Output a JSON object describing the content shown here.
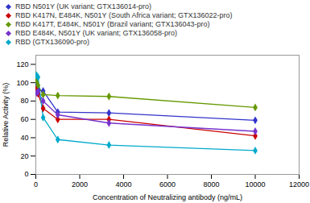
{
  "chart_data": {
    "type": "line",
    "xlabel": "Concentration of Neutralizing antibody (ng/mL)",
    "ylabel": "Relative Activity (%)",
    "x": [
      33,
      100,
      333,
      1000,
      3333,
      10000
    ],
    "series": [
      {
        "name": "RBD N501Y (UK variant; GTX136014-pro)",
        "color": "#3333cc",
        "values": [
          98,
          92,
          91,
          68,
          67,
          59
        ]
      },
      {
        "name": "RBD K417N, E484K, N501Y (South Africa variant; GTX136022-pro)",
        "color": "#cc0000",
        "values": [
          93,
          88,
          72,
          60,
          60,
          42
        ]
      },
      {
        "name": "RBD K417T, E484K, N501Y (Brazil variant; GTX136043-pro)",
        "color": "#669900",
        "values": [
          102,
          97,
          87,
          86,
          85,
          73
        ]
      },
      {
        "name": "RBD E484K, N501Y (UK variant; GTX136058-pro)",
        "color": "#7733cc",
        "values": [
          89,
          90,
          80,
          65,
          56,
          47
        ]
      },
      {
        "name": "RBD (GTX136090-pro)",
        "color": "#00aacc",
        "values": [
          108,
          106,
          62,
          38,
          32,
          26
        ]
      }
    ],
    "marker": "diamond",
    "xlim": [
      0,
      12000
    ],
    "ylim": [
      0,
      130
    ],
    "xticks": [
      0,
      2000,
      4000,
      6000,
      8000,
      10000,
      12000
    ],
    "yticks": [
      0,
      20,
      40,
      60,
      80,
      100,
      120
    ],
    "grid": false,
    "legend": "top"
  }
}
